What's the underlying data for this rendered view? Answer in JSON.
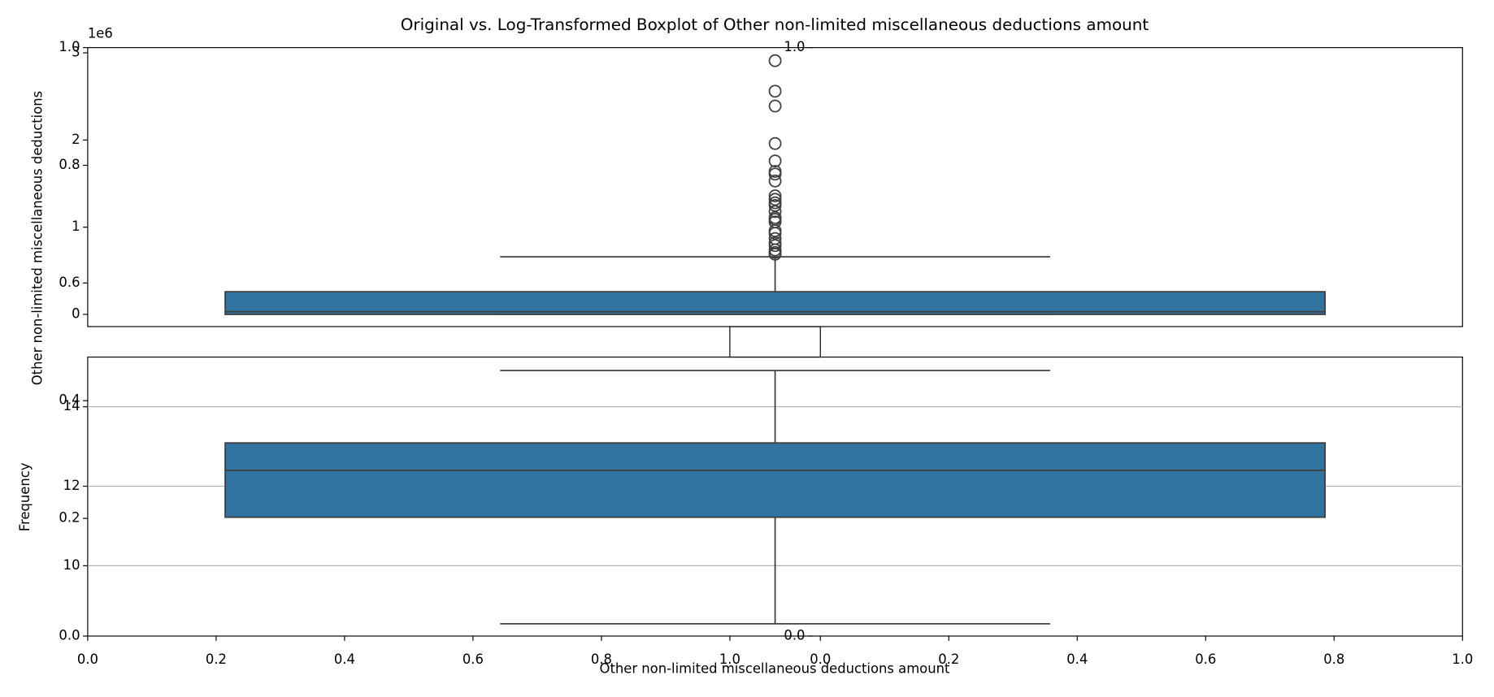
{
  "chart_data": [
    {
      "type": "box",
      "title": "Original vs. Log-Transformed Boxplot of Other non-limited miscellaneous deductions amount",
      "ylabel": "Other non-limited miscellaneous deductions",
      "offset_label": "1e6",
      "ylim": [
        -0.14,
        3.06
      ],
      "yticks": [
        0,
        1,
        2,
        3
      ],
      "color": "#3274a1",
      "box": {
        "q1": 0,
        "median": 0.03,
        "q3": 0.26,
        "whislo": 0,
        "whishi": 0.66,
        "fliers": [
          2.91,
          2.56,
          2.39,
          1.96,
          1.76,
          1.64,
          1.61,
          1.53,
          1.36,
          1.32,
          1.28,
          1.25,
          1.18,
          1.11,
          1.09,
          1.06,
          0.96,
          0.93,
          0.87,
          0.82,
          0.79,
          0.74,
          0.71,
          0.69
        ]
      }
    },
    {
      "type": "box",
      "xlabel": "Other non-limited miscellaneous deductions amount",
      "ylim": [
        8.23,
        15.25
      ],
      "yticks": [
        10,
        12,
        14
      ],
      "grid": true,
      "color": "#3274a1",
      "box": {
        "q1": 11.22,
        "median": 12.4,
        "q3": 13.09,
        "whislo": 8.54,
        "whishi": 14.91,
        "fliers": []
      }
    },
    {
      "type": "blank",
      "ylabel": "Frequency",
      "xlim": [
        0,
        1
      ],
      "xticks": [
        {
          "value": 0,
          "label": "0.0"
        },
        {
          "value": 0.2,
          "label": "0.2"
        },
        {
          "value": 0.4,
          "label": "0.4"
        },
        {
          "value": 0.6,
          "label": "0.6"
        },
        {
          "value": 0.8,
          "label": "0.8"
        },
        {
          "value": 1,
          "label": "1.0"
        }
      ],
      "ylim": [
        0,
        1
      ],
      "yticks": [
        {
          "value": 0,
          "label": "0.0"
        },
        {
          "value": 0.2,
          "label": "0.2"
        },
        {
          "value": 0.4,
          "label": "0.4"
        },
        {
          "value": 0.6,
          "label": "0.6"
        },
        {
          "value": 0.8,
          "label": "0.8"
        },
        {
          "value": 1,
          "label": "1.0"
        }
      ]
    },
    {
      "type": "blank",
      "xlim": [
        0,
        1
      ],
      "xticks": [
        {
          "value": 0,
          "label": "0.0"
        },
        {
          "value": 0.2,
          "label": "0.2"
        },
        {
          "value": 0.4,
          "label": "0.4"
        },
        {
          "value": 0.6,
          "label": "0.6"
        },
        {
          "value": 0.8,
          "label": "0.8"
        },
        {
          "value": 1,
          "label": "1.0"
        }
      ]
    },
    {
      "type": "blank",
      "ylim": [
        0,
        1
      ],
      "yticks": [
        {
          "value": 0,
          "label": "0.0"
        },
        {
          "value": 1,
          "label": "1.0"
        }
      ]
    }
  ]
}
